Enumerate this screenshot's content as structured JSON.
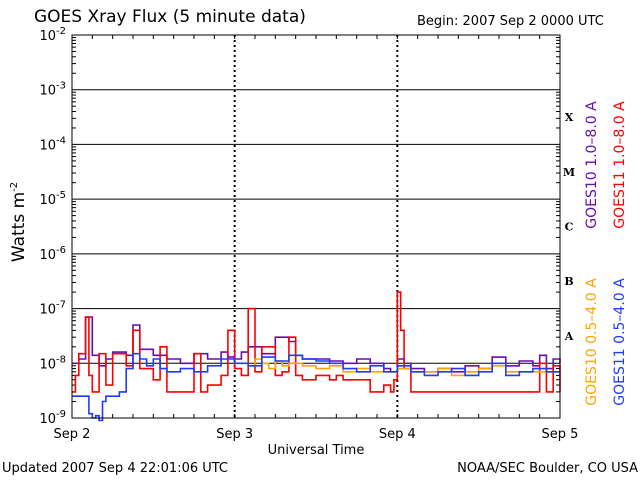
{
  "chart_data": {
    "type": "line",
    "title": "GOES Xray Flux (5 minute data)",
    "begin_label": "Begin:  2007 Sep 2 0000 UTC",
    "ylabel": "Watts m",
    "ylabel_superscript": "-2",
    "xlabel": "Universal Time",
    "updated": "Updated 2007 Sep  4 22:01:06 UTC",
    "credit": "NOAA/SEC Boulder, CO USA",
    "y_scale": "log",
    "ylim": [
      1e-09,
      0.01
    ],
    "y_ticks": [
      {
        "value": 0.01,
        "mant": "10",
        "exp": "-2"
      },
      {
        "value": 0.001,
        "mant": "10",
        "exp": "-3"
      },
      {
        "value": 0.0001,
        "mant": "10",
        "exp": "-4"
      },
      {
        "value": 1e-05,
        "mant": "10",
        "exp": "-5"
      },
      {
        "value": 1e-06,
        "mant": "10",
        "exp": "-6"
      },
      {
        "value": 1e-07,
        "mant": "10",
        "exp": "-7"
      },
      {
        "value": 1e-08,
        "mant": "10",
        "exp": "-8"
      },
      {
        "value": 1e-09,
        "mant": "10",
        "exp": "-9"
      }
    ],
    "xlim": [
      0,
      72
    ],
    "x_ticks": [
      {
        "value": 0,
        "label": "Sep 2"
      },
      {
        "value": 24,
        "label": "Sep 3"
      },
      {
        "value": 48,
        "label": "Sep 4"
      },
      {
        "value": 72,
        "label": "Sep 5"
      }
    ],
    "flare_classes": [
      {
        "label": "X",
        "low": 0.0001,
        "high": 0.001
      },
      {
        "label": "M",
        "low": 1e-05,
        "high": 0.0001
      },
      {
        "label": "C",
        "low": 1e-06,
        "high": 1e-05
      },
      {
        "label": "B",
        "low": 1e-07,
        "high": 1e-06
      },
      {
        "label": "A",
        "low": 1e-08,
        "high": 1e-07
      }
    ],
    "series": [
      {
        "name": "GOES10 1.0–8.0 A",
        "color": "#6a0dad",
        "x": [
          0,
          1,
          2,
          3,
          4,
          5,
          6,
          8,
          9,
          10,
          12,
          14,
          16,
          18,
          20,
          22,
          23,
          24,
          25,
          26,
          28,
          30,
          32,
          33,
          34,
          36,
          38,
          40,
          42,
          44,
          46,
          47,
          48,
          49,
          50,
          52,
          54,
          56,
          58,
          60,
          62,
          64,
          66,
          68,
          69,
          70,
          71,
          72
        ],
        "y": [
          1e-08,
          1.2e-08,
          7e-08,
          1.4e-08,
          9e-09,
          1.2e-08,
          1.6e-08,
          1.4e-08,
          5e-08,
          1.8e-08,
          1.4e-08,
          1.2e-08,
          1e-08,
          1.5e-08,
          1.2e-08,
          1.6e-08,
          1.3e-08,
          1.2e-08,
          1.6e-08,
          2e-08,
          1.5e-08,
          3e-08,
          2.5e-08,
          1.4e-08,
          1.2e-08,
          1.2e-08,
          1.1e-08,
          1e-08,
          1.2e-08,
          1e-08,
          8e-09,
          7e-09,
          1.2e-08,
          1e-08,
          8e-09,
          7e-09,
          8e-09,
          7e-09,
          9e-09,
          8e-09,
          1.3e-08,
          9e-09,
          1.1e-08,
          9e-09,
          1.4e-08,
          8e-09,
          1.2e-08,
          1e-08
        ]
      },
      {
        "name": "GOES11 1.0–8.0 A",
        "color": "#ff0000",
        "x": [
          0,
          0.5,
          1,
          2,
          2.5,
          3,
          4,
          5,
          6,
          8,
          9,
          10,
          12,
          13,
          14,
          16,
          18,
          19,
          20,
          22,
          23,
          24,
          25,
          26,
          27,
          28,
          30,
          31,
          32,
          33,
          34,
          36,
          38,
          39,
          40,
          42,
          44,
          45,
          46,
          47,
          47.5,
          48,
          48.5,
          49,
          50,
          52,
          54,
          56,
          58,
          60,
          62,
          64,
          66,
          68,
          69,
          70,
          71,
          72
        ],
        "y": [
          3e-09,
          6e-09,
          1.5e-08,
          7e-08,
          6e-09,
          3e-09,
          1.5e-08,
          4e-09,
          1.5e-08,
          9e-09,
          4e-08,
          8e-09,
          5e-09,
          2e-08,
          3e-09,
          3e-09,
          1.5e-08,
          3e-09,
          4e-09,
          6e-09,
          4e-08,
          8e-09,
          6e-09,
          1e-07,
          7e-09,
          2e-08,
          6e-09,
          7e-09,
          3e-08,
          6e-09,
          5e-09,
          6e-09,
          5e-09,
          6e-09,
          5e-09,
          5e-09,
          3e-09,
          3e-09,
          4e-09,
          3e-09,
          5e-09,
          2e-07,
          4e-08,
          8e-09,
          3e-09,
          3e-09,
          3e-09,
          3e-09,
          3e-09,
          3e-09,
          3e-09,
          3e-09,
          3e-09,
          3e-09,
          1e-08,
          3e-09,
          9e-09,
          3e-09
        ]
      },
      {
        "name": "GOES10 0.5–4.0 A",
        "color": "#ffa500",
        "x": [
          26,
          27,
          28,
          29,
          30,
          31,
          32,
          34,
          36,
          38,
          40,
          42,
          44,
          46,
          48,
          50,
          52,
          54,
          56,
          58,
          60,
          62,
          64,
          66,
          68,
          70,
          72
        ],
        "y": [
          9e-09,
          1.2e-08,
          1e-08,
          8e-09,
          1.1e-08,
          9e-09,
          1e-08,
          9e-09,
          8e-09,
          9e-09,
          7e-09,
          8e-09,
          7e-09,
          7e-09,
          8e-09,
          7e-09,
          7e-09,
          8e-09,
          6e-09,
          7e-09,
          8e-09,
          9e-09,
          7e-09,
          7e-09,
          7e-09,
          7e-09,
          7e-09
        ]
      },
      {
        "name": "GOES11 0.5–4.0 A",
        "color": "#1f3bff",
        "x": [
          0,
          2,
          2.5,
          3,
          3.5,
          4,
          4.5,
          5,
          6,
          7,
          8,
          9,
          10,
          11,
          12,
          13,
          14,
          16,
          18,
          20,
          22,
          24,
          26,
          28,
          30,
          32,
          34,
          36,
          38,
          40,
          42,
          44,
          46,
          48,
          50,
          52,
          54,
          56,
          58,
          60,
          62,
          64,
          66,
          68,
          70,
          72
        ],
        "y": [
          2.5e-09,
          2.5e-09,
          1.2e-09,
          1e-09,
          1.1e-09,
          9e-10,
          2e-09,
          2.5e-09,
          2.5e-09,
          3e-09,
          8e-09,
          1.5e-08,
          1.2e-08,
          9e-09,
          1.2e-08,
          8e-09,
          7e-09,
          8e-09,
          7e-09,
          9e-09,
          1.2e-08,
          1e-08,
          9e-09,
          1.3e-08,
          1.1e-08,
          1.4e-08,
          1.2e-08,
          1.1e-08,
          1e-08,
          8e-09,
          7e-09,
          9e-09,
          7e-09,
          9e-09,
          7e-09,
          6e-09,
          7e-09,
          8e-09,
          6e-09,
          7e-09,
          1e-08,
          6e-09,
          7e-09,
          8e-09,
          7e-09,
          7e-09
        ]
      }
    ],
    "legend_right": [
      "GOES10 1.0–8.0 A",
      "GOES11 1.0–8.0 A"
    ],
    "legend_right_lower": [
      "GOES10 0.5–4.0 A",
      "GOES11 0.5–4.0 A"
    ],
    "grid": true
  }
}
